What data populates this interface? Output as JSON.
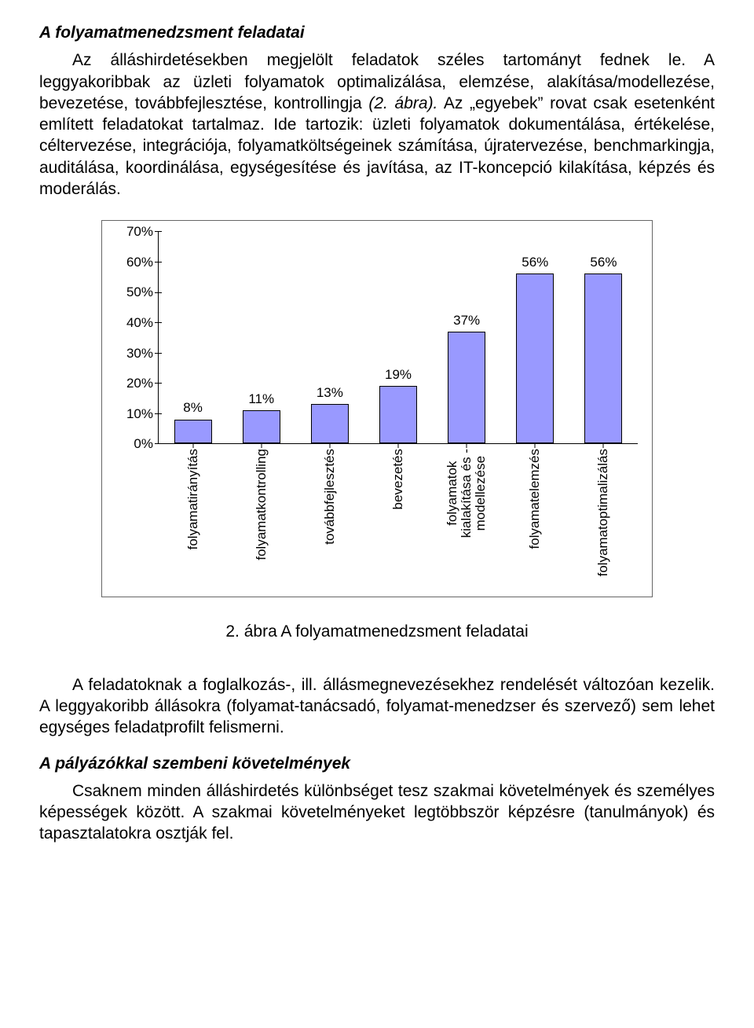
{
  "heading1": "A folyamatmenedzsment feladatai",
  "para1_lead": "Az álláshirdetésekben megjelölt feladatok széles tartományt fednek le. A leggyakoribbak az üzleti folyamatok optimalizálása, elemzése, alakítása/modellezése, bevezetése, továbbfejlesztése, kontrollingja ",
  "para1_ital": "(2. ábra).",
  "para1_tail": " Az „egyebek” rovat csak esetenként említett feladatokat tartalmaz. Ide tartozik: üzleti folyamatok dokumentálása, értékelése, céltervezése, integrációja, folyamatköltségeinek számítása, újratervezése, benchmarkingja, auditálása, koordinálása, egységesítése és javítása, az IT-koncepció kilakítása, képzés és moderálás.",
  "chart": {
    "type": "bar",
    "ymax": 70,
    "ytick_step": 10,
    "bar_color": "#9999ff",
    "bar_border": "#000000",
    "bg_color": "#ffffff",
    "categories": [
      "folyamatirányítás",
      "folyamatkontrolling",
      "továbbfejlesztés",
      "bevezetés",
      "folyamatok\nkialakítása és -\nmodellezése",
      "folyamatelemzés",
      "folyamatoptimalizálás"
    ],
    "values": [
      8,
      11,
      13,
      19,
      37,
      56,
      56
    ],
    "value_labels": [
      "8%",
      "11%",
      "13%",
      "19%",
      "37%",
      "56%",
      "56%"
    ],
    "yticks": [
      "0%",
      "10%",
      "20%",
      "30%",
      "40%",
      "50%",
      "60%",
      "70%"
    ]
  },
  "caption": "2. ábra A folyamatmenedzsment feladatai",
  "para2": "A feladatoknak a foglalkozás-, ill. állásmegnevezésekhez rendelését változóan kezelik. A leggyakoribb állásokra (folyamat-tanácsadó, folyamat-menedzser és szervező) sem lehet egységes feladatprofilt felismerni.",
  "heading2": "A pályázókkal szembeni követelmények",
  "para3": "Csaknem minden álláshirdetés különbséget tesz szakmai követelmények és személyes képességek között. A szakmai követelményeket legtöbbször képzésre (tanulmányok) és tapasztalatokra osztják fel."
}
